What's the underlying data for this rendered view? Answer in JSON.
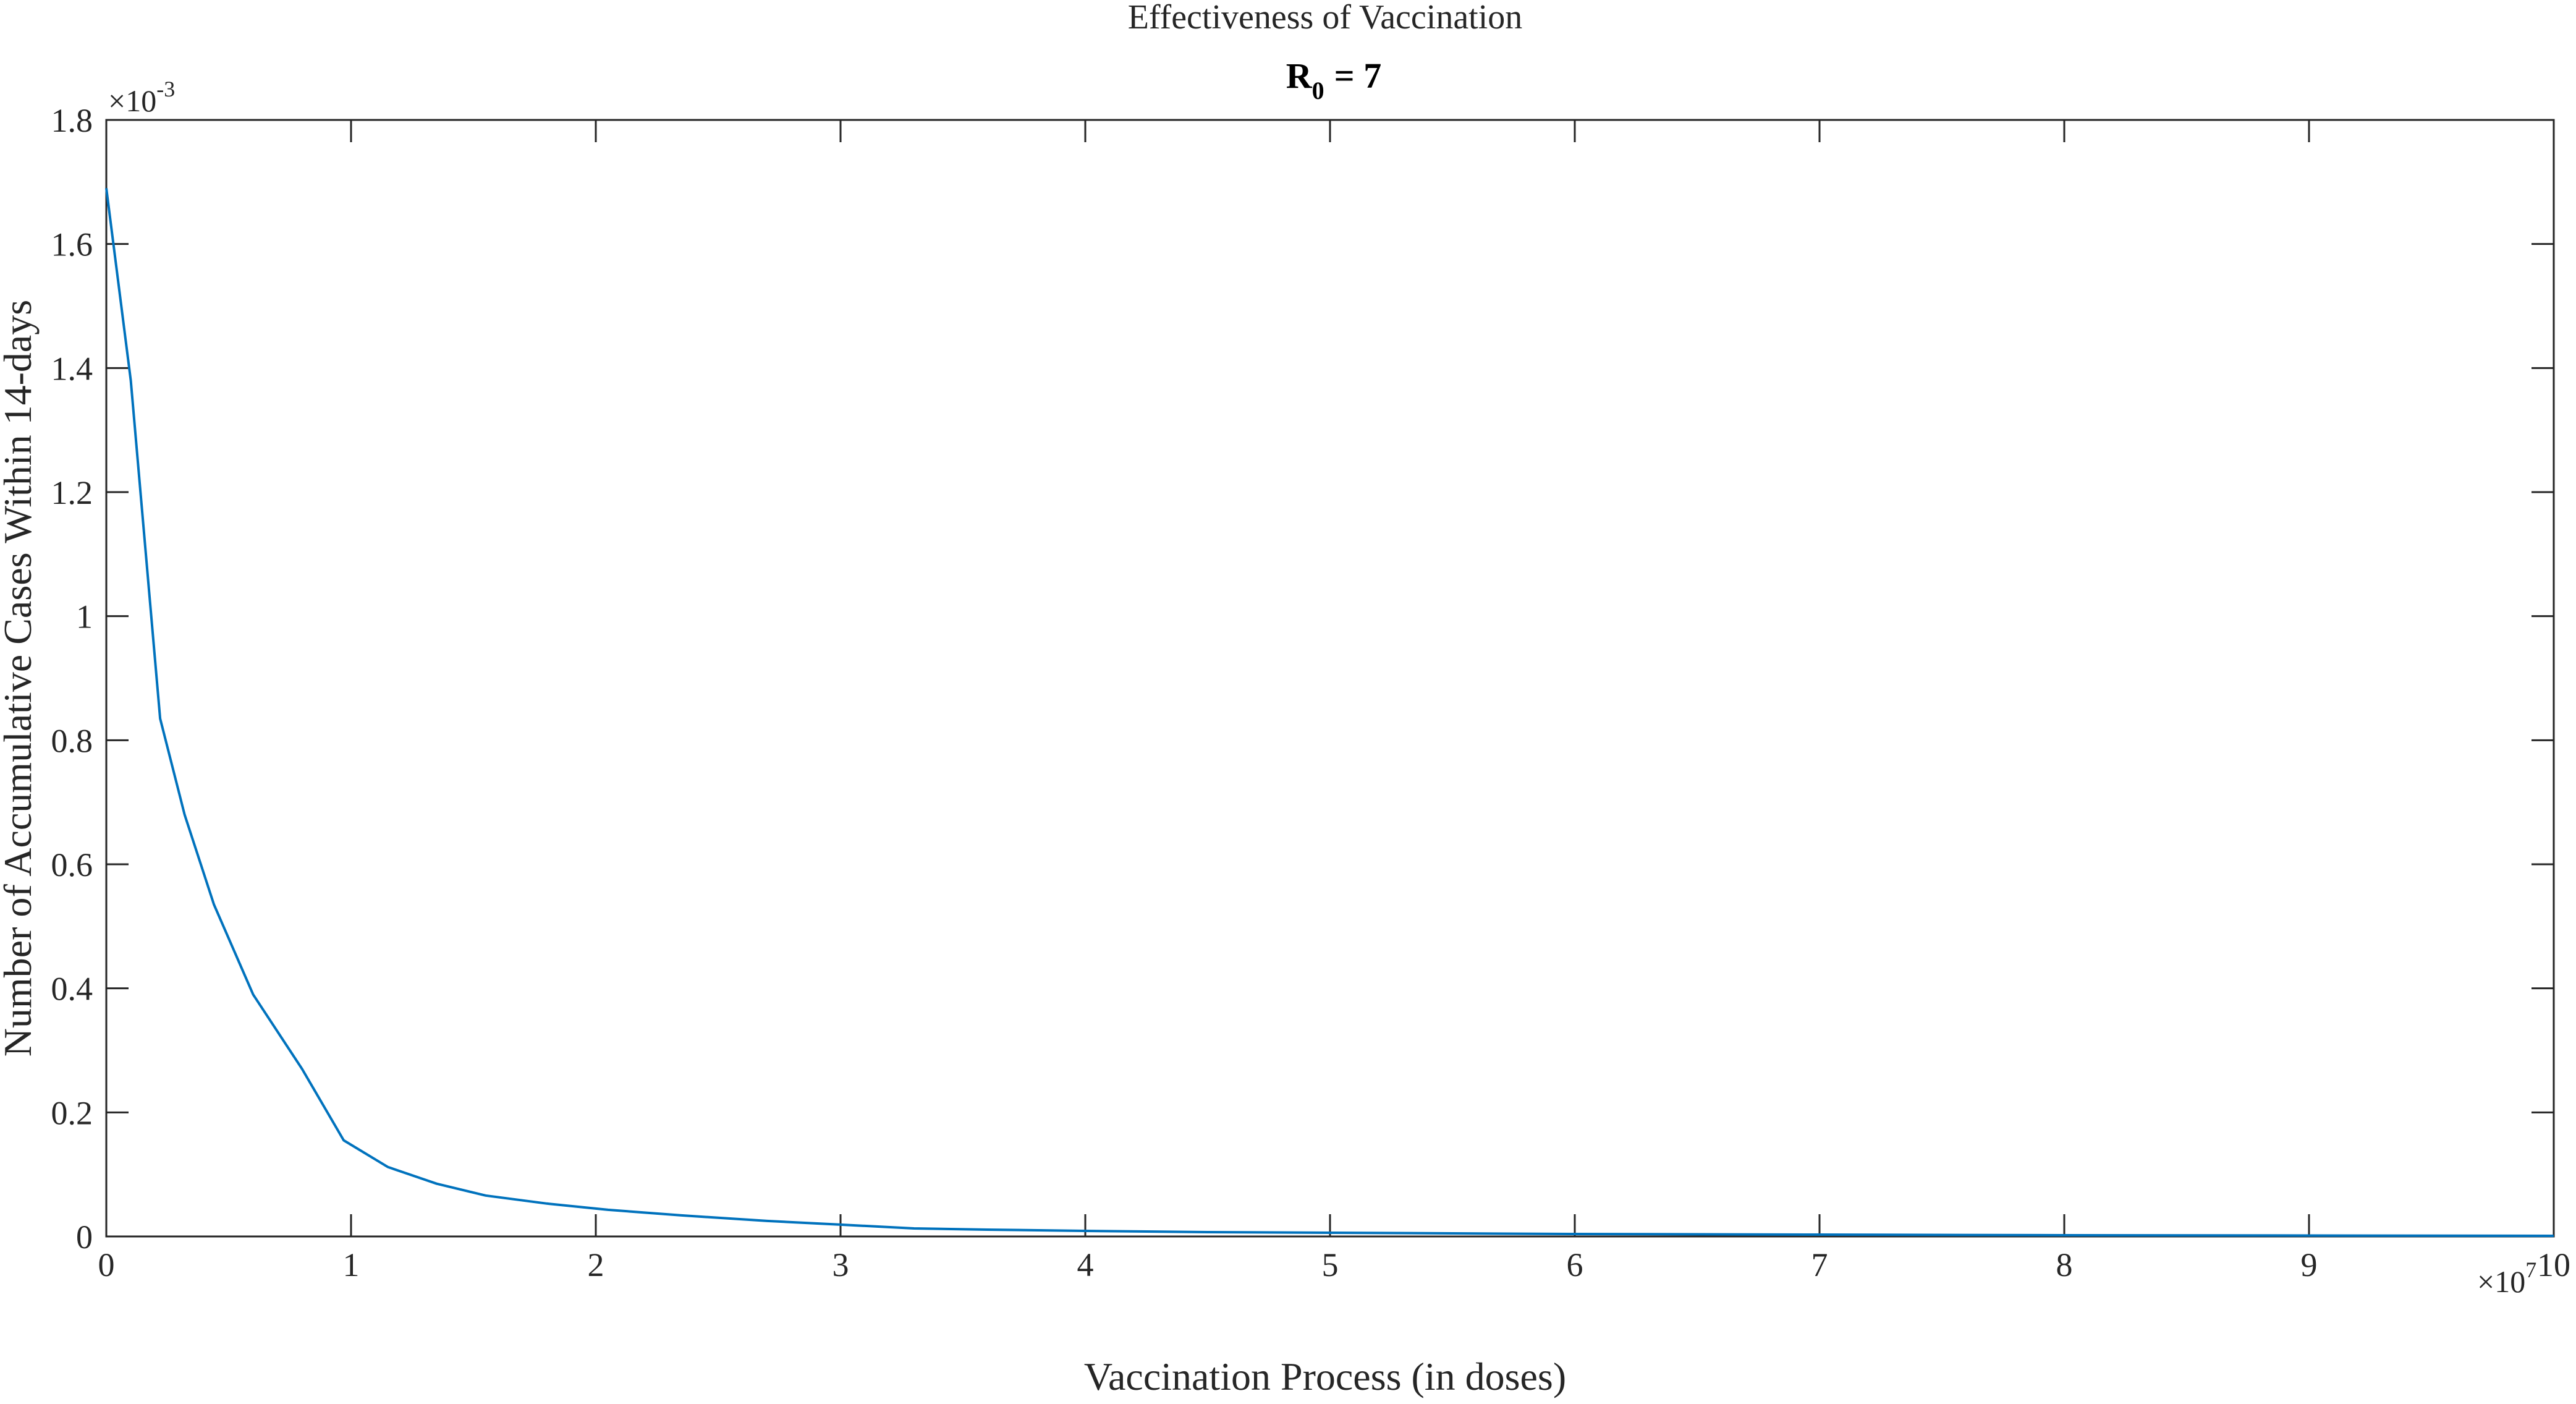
{
  "figure_title": "Effectiveness of Vaccination",
  "chart_data": {
    "type": "line",
    "title": "Effectiveness of Vaccination",
    "subtitle": {
      "main": "R",
      "subscript": "0",
      "suffix": "= 7"
    },
    "xlabel": "Vaccination Process (in doses)",
    "ylabel": "Number of Accumulative Cases Within 14-days",
    "x_multiplier": {
      "base": "×10",
      "exponent": "7"
    },
    "y_multiplier": {
      "base": "×10",
      "exponent": "-3"
    },
    "x_unit_scale": 10000000,
    "y_unit_scale": 0.001,
    "xlim": [
      0,
      10
    ],
    "ylim": [
      0,
      1.8
    ],
    "xticks": [
      0,
      1,
      2,
      3,
      4,
      5,
      6,
      7,
      8,
      9,
      10
    ],
    "xtick_labels": [
      "0",
      "1",
      "2",
      "3",
      "4",
      "5",
      "6",
      "7",
      "8",
      "9",
      "10"
    ],
    "yticks": [
      0,
      0.2,
      0.4,
      0.6,
      0.8,
      1,
      1.2,
      1.4,
      1.6,
      1.8
    ],
    "ytick_labels": [
      "0",
      "0.2",
      "0.4",
      "0.6",
      "0.8",
      "1",
      "1.2",
      "1.4",
      "1.6",
      "1.8"
    ],
    "grid": false,
    "line_color": "#0072BD",
    "series": [
      {
        "x": [
          0,
          0.1,
          0.22,
          0.32,
          0.44,
          0.6,
          0.8,
          0.97,
          1.15,
          1.35,
          1.55,
          1.8,
          2.05,
          2.35,
          2.7,
          3.0,
          3.3,
          3.6,
          4.0,
          4.5,
          5.0,
          5.5,
          6.0,
          7.0,
          8.0,
          9.0,
          10.0
        ],
        "y": [
          1.69,
          1.38,
          0.835,
          0.68,
          0.535,
          0.39,
          0.27,
          0.155,
          0.112,
          0.085,
          0.066,
          0.053,
          0.043,
          0.034,
          0.025,
          0.019,
          0.013,
          0.011,
          0.009,
          0.007,
          0.006,
          0.005,
          0.004,
          0.003,
          0.002,
          0.0015,
          0.001
        ]
      }
    ]
  }
}
